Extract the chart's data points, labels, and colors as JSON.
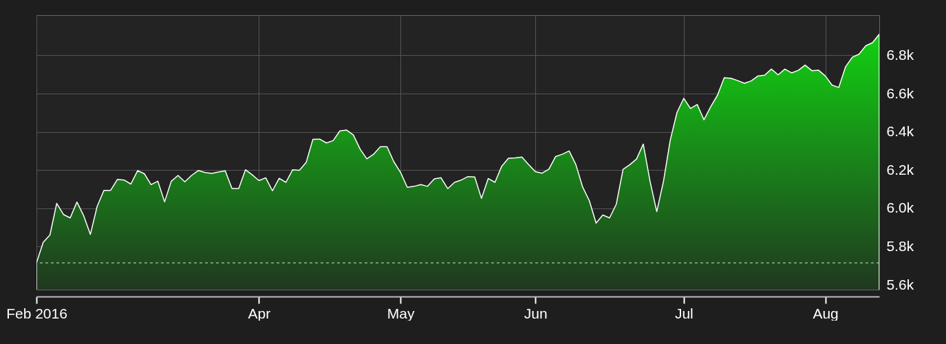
{
  "chart_data": {
    "type": "area",
    "categories": [
      "Feb 2016",
      null,
      null,
      null,
      null,
      null,
      null,
      null,
      null,
      null,
      null,
      null,
      null,
      null,
      null,
      null,
      null,
      null,
      null,
      null,
      null,
      null,
      null,
      null,
      null,
      null,
      null,
      null,
      null,
      null,
      null,
      null,
      null,
      "Apr",
      null,
      null,
      null,
      null,
      null,
      null,
      null,
      null,
      null,
      null,
      null,
      null,
      null,
      null,
      null,
      null,
      null,
      null,
      null,
      null,
      "May",
      null,
      null,
      null,
      null,
      null,
      null,
      null,
      null,
      null,
      null,
      null,
      null,
      null,
      null,
      null,
      null,
      null,
      null,
      null,
      "Jun",
      null,
      null,
      null,
      null,
      null,
      null,
      null,
      null,
      null,
      null,
      null,
      null,
      null,
      null,
      null,
      null,
      null,
      null,
      null,
      null,
      null,
      "Jul",
      null,
      null,
      null,
      null,
      null,
      null,
      null,
      null,
      null,
      null,
      null,
      null,
      null,
      null,
      null,
      null,
      null,
      null,
      null,
      null,
      "Aug",
      null,
      null,
      null,
      null,
      null,
      null,
      null,
      null
    ],
    "series": [
      {
        "color": "#ffffff",
        "values": [
          5715,
          5822,
          5861,
          6026,
          5968,
          5950,
          6033,
          5962,
          5864,
          6010,
          6094,
          6094,
          6151,
          6148,
          6127,
          6197,
          6181,
          6124,
          6142,
          6034,
          6142,
          6172,
          6139,
          6172,
          6198,
          6187,
          6183,
          6190,
          6196,
          6104,
          6104,
          6202,
          6175,
          6145,
          6160,
          6092,
          6157,
          6136,
          6202,
          6199,
          6240,
          6361,
          6362,
          6342,
          6354,
          6405,
          6409,
          6384,
          6310,
          6259,
          6283,
          6322,
          6322,
          6244,
          6188,
          6110,
          6115,
          6124,
          6115,
          6154,
          6160,
          6103,
          6136,
          6148,
          6166,
          6164,
          6052,
          6156,
          6136,
          6220,
          6262,
          6264,
          6268,
          6229,
          6192,
          6184,
          6205,
          6271,
          6283,
          6300,
          6229,
          6112,
          6040,
          5923,
          5965,
          5950,
          6022,
          6204,
          6228,
          6258,
          6336,
          6142,
          5983,
          6142,
          6357,
          6501,
          6575,
          6522,
          6543,
          6463,
          6531,
          6591,
          6683,
          6680,
          6668,
          6654,
          6666,
          6692,
          6696,
          6728,
          6698,
          6728,
          6708,
          6722,
          6749,
          6720,
          6722,
          6692,
          6644,
          6632,
          6740,
          6790,
          6806,
          6850,
          6866,
          6910
        ]
      }
    ],
    "ylim": [
      5575,
      7010
    ],
    "yticks": [
      {
        "value": 5600,
        "label": "5.6k"
      },
      {
        "value": 5800,
        "label": "5.8k"
      },
      {
        "value": 6000,
        "label": "6.0k"
      },
      {
        "value": 6200,
        "label": "6.2k"
      },
      {
        "value": 6400,
        "label": "6.4k"
      },
      {
        "value": 6600,
        "label": "6.6k"
      },
      {
        "value": 6800,
        "label": "6.8k"
      }
    ],
    "ref_lines": [
      {
        "axis": "y",
        "value": 5715,
        "line_style": "dashed"
      }
    ],
    "grid": true
  }
}
